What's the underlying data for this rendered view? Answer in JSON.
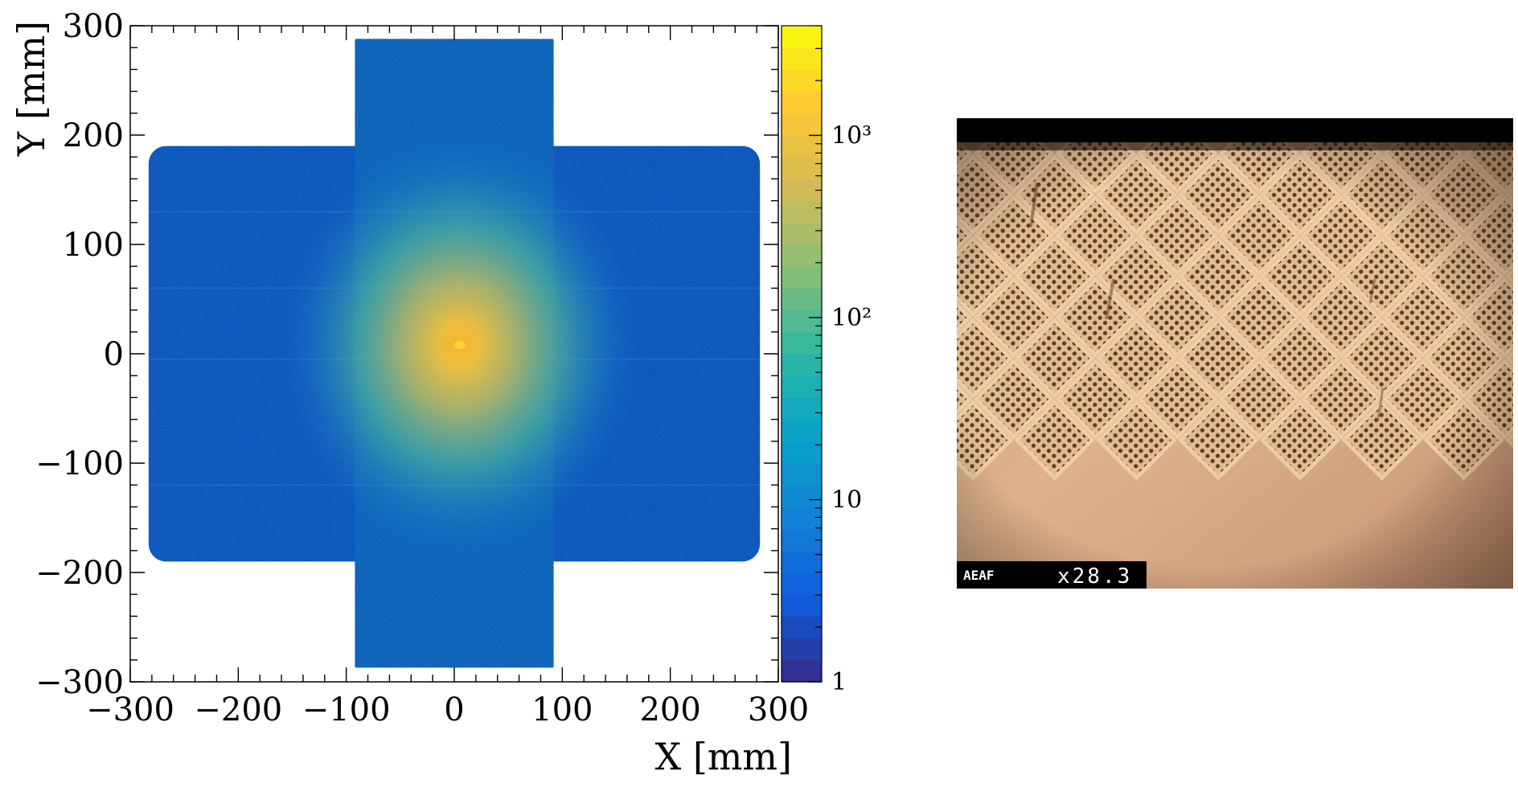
{
  "chart_data": [
    {
      "type": "heatmap",
      "title": "",
      "xlabel": "X [mm]",
      "ylabel": "Y [mm]",
      "xlim": [
        -300,
        300
      ],
      "ylim": [
        -300,
        300
      ],
      "x_ticks": [
        -300,
        -200,
        -100,
        0,
        100,
        200,
        300
      ],
      "y_ticks": [
        -300,
        -200,
        -100,
        0,
        100,
        200,
        300
      ],
      "x_tick_labels": [
        "−300",
        "−200",
        "−100",
        "0",
        "100",
        "200",
        "300"
      ],
      "y_tick_labels": [
        "−300",
        "−200",
        "−100",
        "0",
        "100",
        "200",
        "300"
      ],
      "colorbar": {
        "scale": "log",
        "range": [
          1,
          4000
        ],
        "ticks": [
          1,
          10,
          100,
          1000
        ],
        "tick_labels": [
          "1",
          "10",
          "10²",
          "10³"
        ],
        "colors": [
          "#352a87",
          "#0f5cdd",
          "#1481d6",
          "#06a4ca",
          "#2eb7a4",
          "#87bf77",
          "#d1bb59",
          "#fec832",
          "#f9fb0e"
        ]
      },
      "regions": [
        {
          "name": "horizontal band",
          "x": [
            -283,
            283
          ],
          "y": [
            -190,
            190
          ],
          "level": 4
        },
        {
          "name": "vertical band",
          "x": [
            -92,
            92
          ],
          "y": [
            -287,
            288
          ],
          "level": 6
        },
        {
          "name": "central hotspot",
          "x": [
            0,
            0
          ],
          "y": [
            0,
            0
          ],
          "level": 1200
        }
      ],
      "hotspot": {
        "x": 5,
        "y": 8,
        "peak": 1500,
        "sigma": 55
      }
    }
  ],
  "photo": {
    "caption_left": "AEAF",
    "magnification": "x28.3",
    "diamond_cells_x": 8,
    "diamond_cells_y": 6
  }
}
